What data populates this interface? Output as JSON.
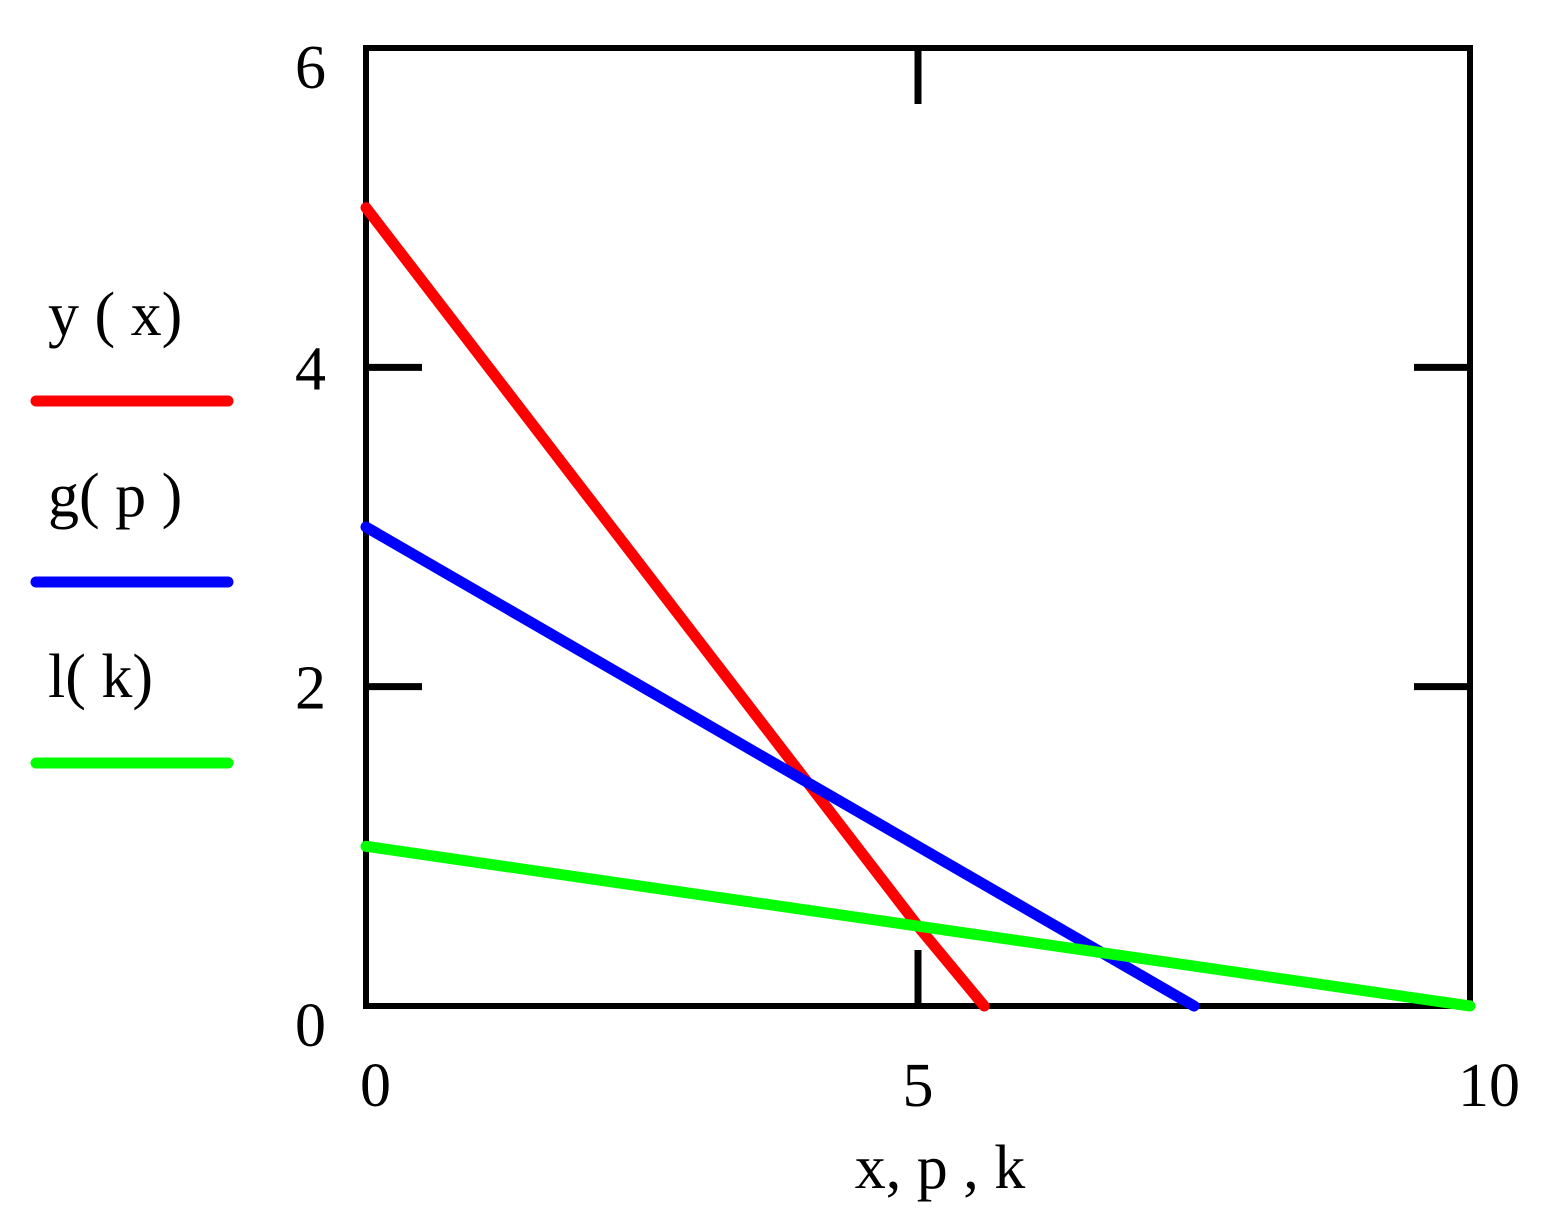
{
  "chart_data": {
    "type": "line",
    "title": "",
    "xlabel": "x, p , k",
    "ylabel": "",
    "xlim": [
      0,
      10
    ],
    "ylim": [
      0,
      6
    ],
    "x_ticks": [
      "0",
      "5",
      "10"
    ],
    "y_ticks": [
      "0",
      "2",
      "4",
      "6"
    ],
    "grid": false,
    "legend_position": "left",
    "series": [
      {
        "name": "y ( x)",
        "color": "#ff0000",
        "x": [
          0,
          1,
          2,
          3,
          4,
          5,
          5.6
        ],
        "y": [
          5.0,
          4.1,
          3.2,
          2.3,
          1.4,
          0.5,
          0.0
        ]
      },
      {
        "name": "g( p )",
        "color": "#0000ff",
        "x": [
          0,
          2,
          4,
          6,
          7.5
        ],
        "y": [
          3.0,
          2.2,
          1.4,
          0.6,
          0.0
        ]
      },
      {
        "name": "l( k)",
        "color": "#00ff00",
        "x": [
          0,
          2,
          4,
          6,
          8,
          10
        ],
        "y": [
          1.0,
          0.8,
          0.6,
          0.4,
          0.2,
          0.0
        ]
      }
    ]
  }
}
